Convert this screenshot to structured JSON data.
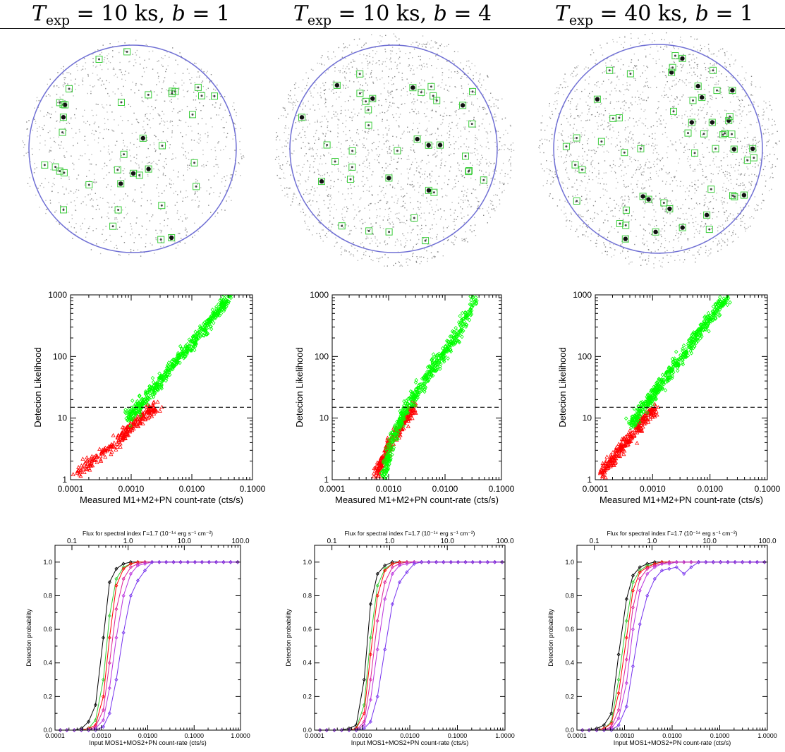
{
  "columns": [
    {
      "title": {
        "var": "T",
        "sub": "exp",
        "rest": " = 10 ks, ",
        "b": "b",
        "brest": " = 1"
      }
    },
    {
      "title": {
        "var": "T",
        "sub": "exp",
        "rest": " = 10 ks, ",
        "b": "b",
        "brest": " = 4"
      }
    },
    {
      "title": {
        "var": "T",
        "sub": "exp",
        "rest": " = 40 ks, ",
        "b": "b",
        "brest": " = 1"
      }
    }
  ],
  "colors": {
    "detected": "#00ff00",
    "undetected": "#ff0000",
    "circle": "#6f6fd4",
    "box": "#3ccd3c"
  },
  "chart_data": [
    {
      "panel": "likelihood",
      "column": 0,
      "type": "scatter",
      "xlabel": "Measured M1+M2+PN count-rate (cts/s)",
      "ylabel": "Detecion Likelihood",
      "xscale": "log",
      "yscale": "log",
      "xlim": [
        0.0001,
        0.1
      ],
      "ylim": [
        1,
        1000
      ],
      "x_ticks": [
        "0.0001",
        "0.0010",
        "0.0100",
        "0.1000"
      ],
      "y_ticks": [
        "1",
        "10",
        "100",
        "1000"
      ],
      "threshold": 15,
      "series": [
        {
          "marker": "triangle",
          "color": "#ff0000",
          "x": [
            0.00013,
            0.0002,
            0.0004,
            0.0007,
            0.001,
            0.0014,
            0.002,
            0.0028
          ],
          "y": [
            1.2,
            1.8,
            3,
            5,
            7,
            10,
            13,
            15
          ]
        },
        {
          "marker": "diamond",
          "color": "#00ff00",
          "x": [
            0.0009,
            0.0015,
            0.003,
            0.006,
            0.012,
            0.025,
            0.04
          ],
          "y": [
            10,
            18,
            40,
            90,
            200,
            480,
            950
          ]
        }
      ]
    },
    {
      "panel": "likelihood",
      "column": 1,
      "type": "scatter",
      "xlabel": "Measured M1+M2+PN count-rate (cts/s)",
      "ylabel": "Detecion Likelihood",
      "xscale": "log",
      "yscale": "log",
      "xlim": [
        0.0001,
        0.1
      ],
      "ylim": [
        1,
        1000
      ],
      "x_ticks": [
        "0.0001",
        "0.0010",
        "0.0100",
        "0.1000"
      ],
      "y_ticks": [
        "1",
        "10",
        "100",
        "1000"
      ],
      "threshold": 15,
      "series": [
        {
          "marker": "triangle",
          "color": "#ff0000",
          "x": [
            0.0006,
            0.0008,
            0.001,
            0.0014,
            0.002,
            0.003
          ],
          "y": [
            1.2,
            2,
            3.5,
            6,
            10,
            15
          ]
        },
        {
          "marker": "diamond",
          "color": "#00ff00",
          "x": [
            0.0008,
            0.0012,
            0.002,
            0.004,
            0.008,
            0.016,
            0.035
          ],
          "y": [
            1,
            5,
            14,
            35,
            90,
            220,
            900
          ]
        }
      ]
    },
    {
      "panel": "likelihood",
      "column": 2,
      "type": "scatter",
      "xlabel": "Measured M1+M2+PN count-rate (cts/s)",
      "ylabel": "Detecion Likelihood",
      "xscale": "log",
      "yscale": "log",
      "xlim": [
        0.0001,
        0.1
      ],
      "ylim": [
        1,
        1000
      ],
      "x_ticks": [
        "0.0001",
        "0.0010",
        "0.0100",
        "0.1000"
      ],
      "y_ticks": [
        "1",
        "10",
        "100",
        "1000"
      ],
      "threshold": 15,
      "series": [
        {
          "marker": "triangle",
          "color": "#ff0000",
          "x": [
            0.00013,
            0.00018,
            0.0003,
            0.0005,
            0.0007,
            0.0011
          ],
          "y": [
            1.3,
            2,
            3.5,
            6,
            9,
            14
          ]
        },
        {
          "marker": "diamond",
          "color": "#00ff00",
          "x": [
            0.0004,
            0.0007,
            0.0012,
            0.0025,
            0.005,
            0.01,
            0.02
          ],
          "y": [
            8,
            15,
            30,
            70,
            180,
            420,
            950
          ]
        }
      ]
    },
    {
      "panel": "probability",
      "column": 0,
      "type": "line",
      "top_axis_label": "Flux for spectral index Γ=1.7 (10⁻¹⁴ erg s⁻¹ cm⁻²)",
      "top_ticks": [
        "0.1",
        "1.0",
        "10.0",
        "100.0"
      ],
      "xlabel": "Input MOS1+MOS2+PN count-rate (cts/s)",
      "ylabel": "Detection probability",
      "xscale": "log",
      "xlim": [
        0.0001,
        1.0
      ],
      "ylim": [
        0,
        1.1
      ],
      "x_ticks": [
        "0.0001",
        "0.0010",
        "0.0100",
        "0.1000",
        "1.0000"
      ],
      "y_ticks": [
        "0.0",
        "0.2",
        "0.4",
        "0.6",
        "0.8",
        "1.0"
      ],
      "x": [
        0.00013,
        0.00018,
        0.00026,
        0.00037,
        0.00053,
        0.00075,
        0.0011,
        0.0015,
        0.0021,
        0.003,
        0.0043,
        0.0061,
        0.0087,
        0.0124,
        0.0177,
        0.025,
        0.036,
        0.051,
        0.073,
        0.104,
        0.148,
        0.21,
        0.3,
        0.43,
        0.61,
        0.87
      ],
      "series": [
        {
          "color": "#000000",
          "values": [
            0,
            0,
            0,
            0.01,
            0.05,
            0.15,
            0.55,
            0.88,
            0.96,
            0.99,
            1,
            1,
            1,
            1,
            1,
            1,
            1,
            1,
            1,
            1,
            1,
            1,
            1,
            1,
            1,
            1
          ]
        },
        {
          "color": "#33cc33",
          "values": [
            0,
            0,
            0,
            0,
            0.01,
            0.06,
            0.3,
            0.68,
            0.9,
            0.97,
            0.99,
            1,
            1,
            1,
            1,
            1,
            1,
            1,
            1,
            1,
            1,
            1,
            1,
            1,
            1,
            1
          ]
        },
        {
          "color": "#ff0000",
          "values": [
            0,
            0,
            0,
            0,
            0.01,
            0.03,
            0.2,
            0.55,
            0.86,
            0.96,
            0.99,
            1,
            1,
            1,
            1,
            1,
            1,
            1,
            1,
            1,
            1,
            1,
            1,
            1,
            1,
            1
          ]
        },
        {
          "color": "#dd2299",
          "values": [
            0,
            0,
            0,
            0,
            0,
            0.02,
            0.12,
            0.4,
            0.72,
            0.9,
            0.97,
            0.99,
            1,
            1,
            1,
            1,
            1,
            1,
            1,
            1,
            1,
            1,
            1,
            1,
            1,
            1
          ]
        },
        {
          "color": "#bb33dd",
          "values": [
            0,
            0,
            0,
            0,
            0,
            0.01,
            0.06,
            0.25,
            0.55,
            0.8,
            0.93,
            0.98,
            0.99,
            1,
            1,
            1,
            1,
            1,
            1,
            1,
            1,
            1,
            1,
            1,
            1,
            1
          ]
        },
        {
          "color": "#7733ee",
          "values": [
            0,
            0,
            0,
            0,
            0,
            0,
            0.02,
            0.1,
            0.3,
            0.58,
            0.8,
            0.89,
            0.95,
            1,
            1,
            1,
            1,
            1,
            1,
            1,
            1,
            1,
            1,
            1,
            1,
            1
          ]
        }
      ]
    },
    {
      "panel": "probability",
      "column": 1,
      "type": "line",
      "top_axis_label": "Flux for spectral index Γ=1.7 (10⁻¹⁴ erg s⁻¹ cm⁻²)",
      "top_ticks": [
        "0.1",
        "1.0",
        "10.0",
        "100.0"
      ],
      "xlabel": "Input MOS1+MOS2+PN count-rate (cts/s)",
      "ylabel": "Detection probability",
      "xscale": "log",
      "xlim": [
        0.0001,
        1.0
      ],
      "ylim": [
        0,
        1.1
      ],
      "x_ticks": [
        "0.0001",
        "0.0010",
        "0.0100",
        "0.1000",
        "1.0000"
      ],
      "y_ticks": [
        "0.0",
        "0.2",
        "0.4",
        "0.6",
        "0.8",
        "1.0"
      ],
      "x": [
        0.00013,
        0.00018,
        0.00026,
        0.00037,
        0.00053,
        0.00075,
        0.0011,
        0.0015,
        0.0021,
        0.003,
        0.0043,
        0.0061,
        0.0087,
        0.0124,
        0.0177,
        0.025,
        0.036,
        0.051,
        0.073,
        0.104,
        0.148,
        0.21,
        0.3,
        0.43,
        0.61,
        0.87
      ],
      "series": [
        {
          "color": "#000000",
          "values": [
            0,
            0,
            0,
            0,
            0.01,
            0.03,
            0.3,
            0.75,
            0.93,
            0.98,
            1,
            1,
            1,
            1,
            1,
            1,
            1,
            1,
            1,
            1,
            1,
            1,
            1,
            1,
            1,
            1
          ]
        },
        {
          "color": "#33cc33",
          "values": [
            0,
            0,
            0,
            0,
            0,
            0.01,
            0.15,
            0.55,
            0.86,
            0.96,
            0.99,
            1,
            1,
            1,
            1,
            1,
            1,
            1,
            1,
            1,
            1,
            1,
            1,
            1,
            1,
            1
          ]
        },
        {
          "color": "#ff0000",
          "values": [
            0,
            0,
            0,
            0,
            0,
            0.01,
            0.1,
            0.45,
            0.8,
            0.95,
            0.99,
            1,
            1,
            1,
            1,
            1,
            1,
            1,
            1,
            1,
            1,
            1,
            1,
            1,
            1,
            1
          ]
        },
        {
          "color": "#dd2299",
          "values": [
            0,
            0,
            0,
            0,
            0,
            0,
            0.05,
            0.3,
            0.65,
            0.88,
            0.97,
            0.99,
            1,
            1,
            1,
            1,
            1,
            1,
            1,
            1,
            1,
            1,
            1,
            1,
            1,
            1
          ]
        },
        {
          "color": "#bb33dd",
          "values": [
            0,
            0,
            0,
            0,
            0,
            0,
            0.03,
            0.18,
            0.48,
            0.78,
            0.93,
            0.98,
            0.99,
            1,
            1,
            1,
            1,
            1,
            1,
            1,
            1,
            1,
            1,
            1,
            1,
            1
          ]
        },
        {
          "color": "#7733ee",
          "values": [
            0,
            0,
            0,
            0,
            0,
            0,
            0.01,
            0.05,
            0.2,
            0.48,
            0.75,
            0.88,
            0.94,
            0.99,
            1,
            1,
            1,
            1,
            1,
            1,
            1,
            1,
            1,
            1,
            1,
            1
          ]
        }
      ]
    },
    {
      "panel": "probability",
      "column": 2,
      "type": "line",
      "top_axis_label": "Flux for spectral index Γ=1.7 (10⁻¹⁴ erg s⁻¹ cm⁻²)",
      "top_ticks": [
        "0.1",
        "1.0",
        "10.0",
        "100.0"
      ],
      "xlabel": "Input MOS1+MOS2+PN count-rate (cts/s)",
      "ylabel": "Detection probability",
      "xscale": "log",
      "xlim": [
        0.0001,
        1.0
      ],
      "ylim": [
        0,
        1.1
      ],
      "x_ticks": [
        "0.0001",
        "0.0010",
        "0.0100",
        "0.1000",
        "1.0000"
      ],
      "y_ticks": [
        "0.0",
        "0.2",
        "0.4",
        "0.6",
        "0.8",
        "1.0"
      ],
      "x": [
        0.00013,
        0.00018,
        0.00026,
        0.00037,
        0.00053,
        0.00075,
        0.0011,
        0.0015,
        0.0021,
        0.003,
        0.0043,
        0.0061,
        0.0087,
        0.0124,
        0.0177,
        0.025,
        0.036,
        0.051,
        0.073,
        0.104,
        0.148,
        0.21,
        0.3,
        0.43,
        0.61,
        0.87
      ],
      "series": [
        {
          "color": "#000000",
          "values": [
            0,
            0,
            0.01,
            0.03,
            0.1,
            0.45,
            0.78,
            0.92,
            0.97,
            0.99,
            1,
            1,
            1,
            1,
            1,
            1,
            1,
            1,
            1,
            1,
            1,
            1,
            1,
            1,
            1,
            1
          ]
        },
        {
          "color": "#33cc33",
          "values": [
            0,
            0,
            0,
            0.01,
            0.05,
            0.3,
            0.65,
            0.88,
            0.95,
            0.98,
            0.99,
            1,
            1,
            1,
            1,
            1,
            1,
            1,
            1,
            1,
            1,
            1,
            1,
            1,
            1,
            1
          ]
        },
        {
          "color": "#ff0000",
          "values": [
            0,
            0,
            0,
            0.01,
            0.04,
            0.22,
            0.55,
            0.83,
            0.94,
            0.97,
            0.99,
            1,
            1,
            1,
            1,
            1,
            1,
            1,
            1,
            1,
            1,
            1,
            1,
            1,
            1,
            1
          ]
        },
        {
          "color": "#dd2299",
          "values": [
            0,
            0,
            0,
            0,
            0.02,
            0.12,
            0.42,
            0.73,
            0.9,
            0.96,
            0.98,
            0.99,
            1,
            1,
            1,
            1,
            1,
            1,
            1,
            1,
            1,
            1,
            1,
            1,
            1,
            1
          ]
        },
        {
          "color": "#bb33dd",
          "values": [
            0,
            0,
            0,
            0,
            0.01,
            0.07,
            0.28,
            0.6,
            0.83,
            0.93,
            0.97,
            0.99,
            0.99,
            1,
            1,
            1,
            1,
            1,
            1,
            1,
            1,
            1,
            1,
            1,
            1,
            1
          ]
        },
        {
          "color": "#7733ee",
          "values": [
            0,
            0,
            0,
            0,
            0,
            0.03,
            0.14,
            0.38,
            0.63,
            0.8,
            0.9,
            0.95,
            0.96,
            0.97,
            0.93,
            0.97,
            1,
            1,
            1,
            1,
            1,
            1,
            1,
            1,
            1,
            1
          ]
        }
      ]
    }
  ]
}
